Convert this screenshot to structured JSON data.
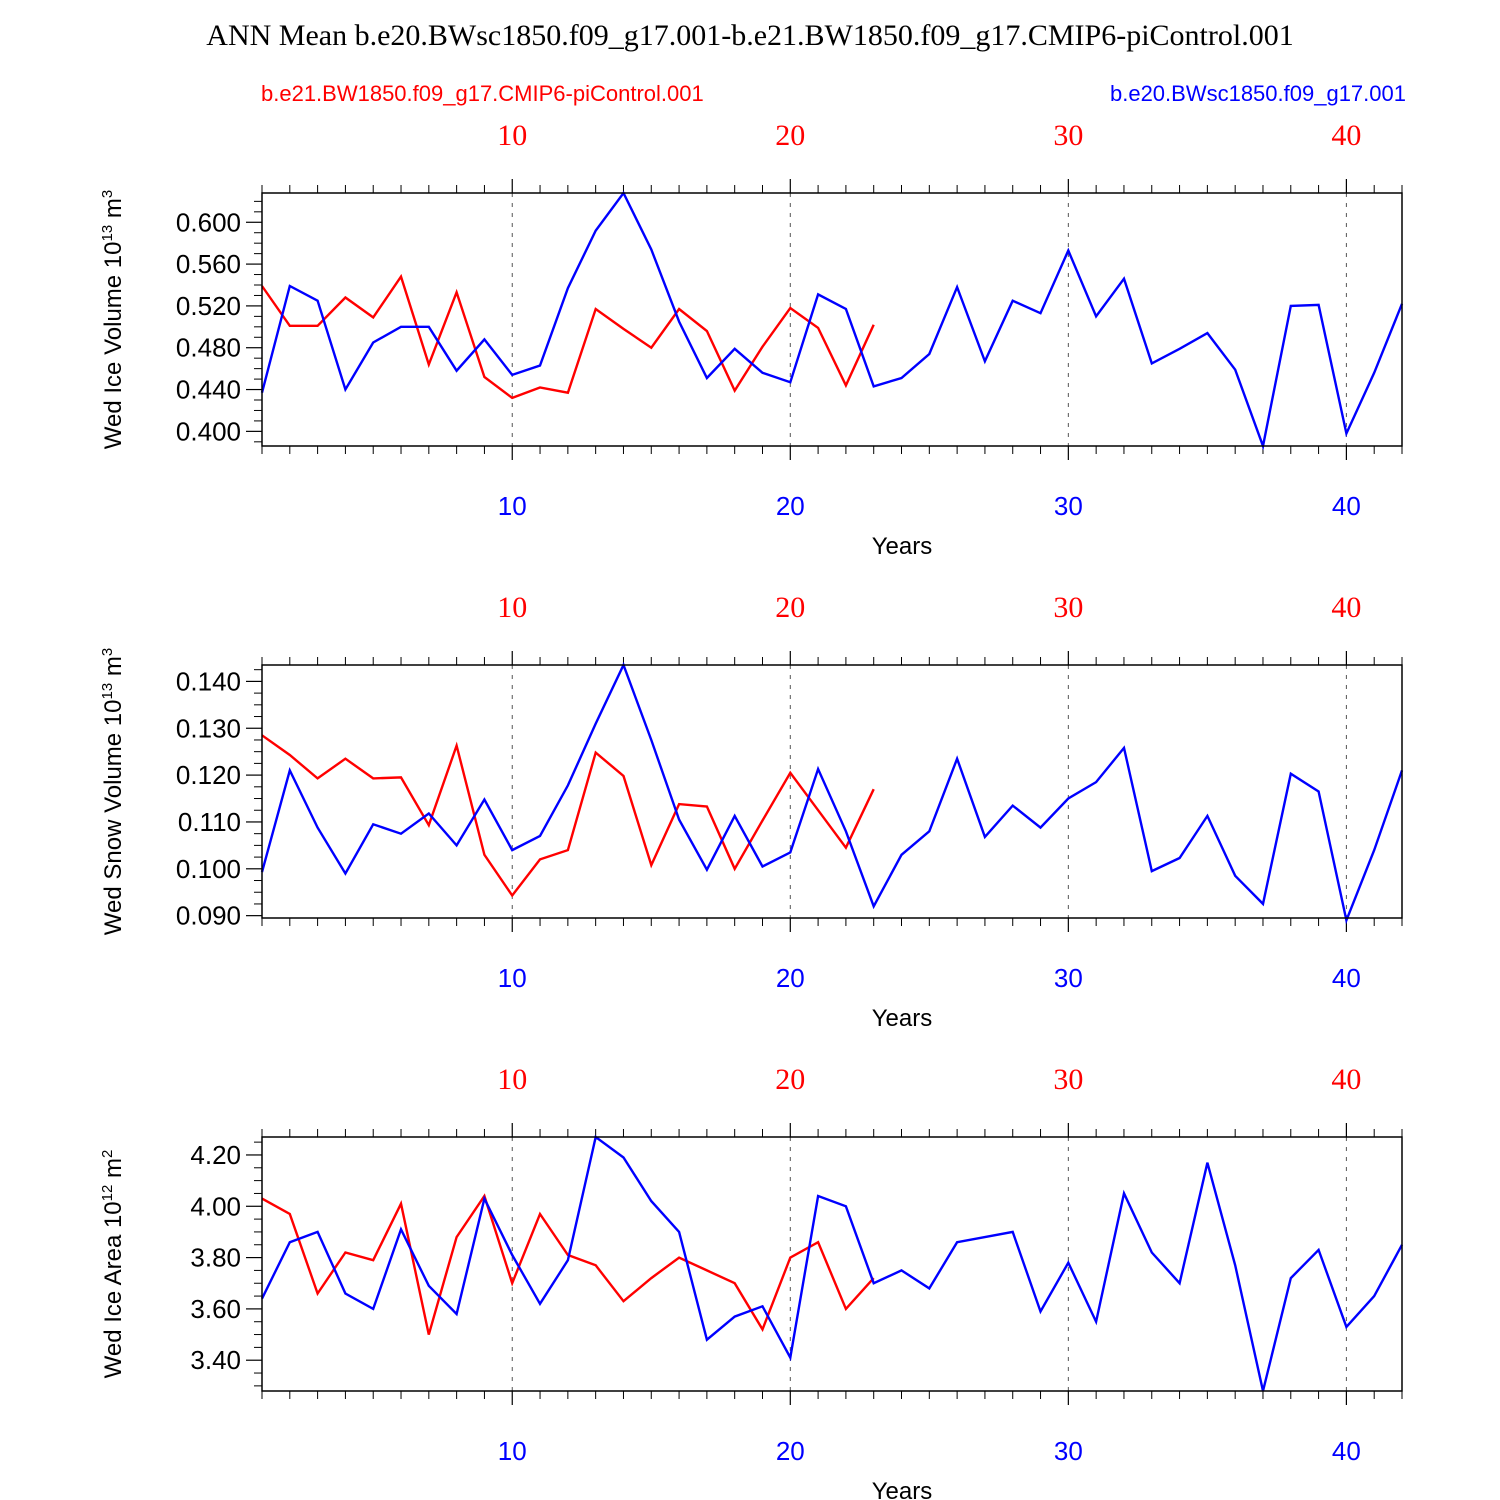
{
  "figure": {
    "title": "ANN Mean b.e20.BWsc1850.f09_g17.001-b.e21.BW1850.f09_g17.CMIP6-piControl.001",
    "legend": {
      "left": {
        "text": "b.e21.BW1850.f09_g17.CMIP6-piControl.001",
        "color": "#ff0000"
      },
      "right": {
        "text": "b.e20.BWsc1850.f09_g17.001",
        "color": "#0000ff"
      }
    },
    "colors": {
      "ctrl": "#ff0000",
      "case": "#0000ff",
      "grid": "#555555",
      "axis": "#000000"
    }
  },
  "chart_data": [
    {
      "type": "line",
      "ylabel": "Wed Ice Volume 10",
      "ylabel_exp": "13",
      "ylabel_unit": " m",
      "ylabel_unit_exp": "3",
      "xlabel": "Years",
      "xlim": [
        1,
        42
      ],
      "ylim": [
        0.386,
        0.628
      ],
      "yticks": [
        "0.400",
        "0.440",
        "0.480",
        "0.520",
        "0.560",
        "0.600"
      ],
      "ytick_values": [
        0.4,
        0.44,
        0.48,
        0.52,
        0.56,
        0.6
      ],
      "yminor": 0.01,
      "xticks": [
        "10",
        "20",
        "30",
        "40"
      ],
      "xtick_values": [
        10,
        20,
        30,
        40
      ],
      "top_xticks": [
        "10",
        "20",
        "30",
        "40"
      ],
      "grid": "dashed vertical at x ticks",
      "series": [
        {
          "name": "b.e21.BW1850.f09_g17.CMIP6-piControl.001",
          "color": "#ff0000",
          "x": [
            1,
            2,
            3,
            4,
            5,
            6,
            7,
            8,
            9,
            10,
            11,
            12,
            13,
            14,
            15,
            16,
            17,
            18,
            19,
            20,
            21,
            22,
            23
          ],
          "values": [
            0.539,
            0.501,
            0.501,
            0.528,
            0.509,
            0.548,
            0.464,
            0.533,
            0.452,
            0.432,
            0.442,
            0.437,
            0.517,
            0.498,
            0.48,
            0.517,
            0.496,
            0.439,
            0.481,
            0.518,
            0.499,
            0.444,
            0.502
          ]
        },
        {
          "name": "b.e20.BWsc1850.f09_g17.001",
          "color": "#0000ff",
          "x": [
            1,
            2,
            3,
            4,
            5,
            6,
            7,
            8,
            9,
            10,
            11,
            12,
            13,
            14,
            15,
            16,
            17,
            18,
            19,
            20,
            21,
            22,
            23,
            24,
            25,
            26,
            27,
            28,
            29,
            30,
            31,
            32,
            33,
            34,
            35,
            36,
            37,
            38,
            39,
            40,
            41,
            42
          ],
          "values": [
            0.437,
            0.539,
            0.525,
            0.44,
            0.485,
            0.5,
            0.5,
            0.458,
            0.488,
            0.454,
            0.463,
            0.537,
            0.592,
            0.628,
            0.574,
            0.505,
            0.451,
            0.479,
            0.456,
            0.447,
            0.531,
            0.517,
            0.443,
            0.451,
            0.474,
            0.538,
            0.467,
            0.525,
            0.513,
            0.573,
            0.51,
            0.546,
            0.465,
            0.479,
            0.494,
            0.459,
            0.386,
            0.52,
            0.521,
            0.398,
            0.456,
            0.522
          ]
        }
      ]
    },
    {
      "type": "line",
      "ylabel": "Wed Snow Volume 10",
      "ylabel_exp": "13",
      "ylabel_unit": " m",
      "ylabel_unit_exp": "3",
      "xlabel": "Years",
      "xlim": [
        1,
        42
      ],
      "ylim": [
        0.0895,
        0.1435
      ],
      "yticks": [
        "0.090",
        "0.100",
        "0.110",
        "0.120",
        "0.130",
        "0.140"
      ],
      "ytick_values": [
        0.09,
        0.1,
        0.11,
        0.12,
        0.13,
        0.14
      ],
      "yminor": 0.0025,
      "xticks": [
        "10",
        "20",
        "30",
        "40"
      ],
      "xtick_values": [
        10,
        20,
        30,
        40
      ],
      "top_xticks": [
        "10",
        "20",
        "30",
        "40"
      ],
      "grid": "dashed vertical at x ticks",
      "series": [
        {
          "name": "b.e21.BW1850.f09_g17.CMIP6-piControl.001",
          "color": "#ff0000",
          "x": [
            1,
            2,
            3,
            4,
            5,
            6,
            7,
            8,
            9,
            10,
            11,
            12,
            13,
            14,
            15,
            16,
            17,
            18,
            19,
            20,
            21,
            22,
            23
          ],
          "values": [
            0.1285,
            0.1243,
            0.1193,
            0.1235,
            0.1193,
            0.1195,
            0.1093,
            0.1263,
            0.103,
            0.0943,
            0.102,
            0.104,
            0.1248,
            0.1198,
            0.1008,
            0.1138,
            0.1133,
            0.1,
            0.1103,
            0.1205,
            0.1125,
            0.1045,
            0.117
          ]
        },
        {
          "name": "b.e20.BWsc1850.f09_g17.001",
          "color": "#0000ff",
          "x": [
            1,
            2,
            3,
            4,
            5,
            6,
            7,
            8,
            9,
            10,
            11,
            12,
            13,
            14,
            15,
            16,
            17,
            18,
            19,
            20,
            21,
            22,
            23,
            24,
            25,
            26,
            27,
            28,
            29,
            30,
            31,
            32,
            33,
            34,
            35,
            36,
            37,
            38,
            39,
            40,
            41,
            42
          ],
          "values": [
            0.0993,
            0.121,
            0.1088,
            0.099,
            0.1095,
            0.1075,
            0.1118,
            0.105,
            0.1148,
            0.104,
            0.107,
            0.1178,
            0.131,
            0.1435,
            0.1275,
            0.1105,
            0.0998,
            0.1113,
            0.1005,
            0.1035,
            0.1213,
            0.108,
            0.092,
            0.103,
            0.108,
            0.1235,
            0.1068,
            0.1135,
            0.1088,
            0.115,
            0.1185,
            0.1258,
            0.0995,
            0.1023,
            0.1113,
            0.0985,
            0.0925,
            0.1203,
            0.1165,
            0.089,
            0.104,
            0.121
          ]
        }
      ]
    },
    {
      "type": "line",
      "ylabel": "Wed Ice Area 10",
      "ylabel_exp": "12",
      "ylabel_unit": " m",
      "ylabel_unit_exp": "2",
      "xlabel": "Years",
      "xlim": [
        1,
        42
      ],
      "ylim": [
        3.28,
        4.27
      ],
      "yticks": [
        "3.40",
        "3.60",
        "3.80",
        "4.00",
        "4.20"
      ],
      "ytick_values": [
        3.4,
        3.6,
        3.8,
        4.0,
        4.2
      ],
      "yminor": 0.05,
      "xticks": [
        "10",
        "20",
        "30",
        "40"
      ],
      "xtick_values": [
        10,
        20,
        30,
        40
      ],
      "top_xticks": [
        "10",
        "20",
        "30",
        "40"
      ],
      "grid": "dashed vertical at x ticks",
      "series": [
        {
          "name": "b.e21.BW1850.f09_g17.CMIP6-piControl.001",
          "color": "#ff0000",
          "x": [
            1,
            2,
            3,
            4,
            5,
            6,
            7,
            8,
            9,
            10,
            11,
            12,
            13,
            14,
            15,
            16,
            17,
            18,
            19,
            20,
            21,
            22,
            23
          ],
          "values": [
            4.03,
            3.97,
            3.66,
            3.82,
            3.79,
            4.01,
            3.5,
            3.88,
            4.04,
            3.7,
            3.97,
            3.81,
            3.77,
            3.63,
            3.72,
            3.8,
            3.75,
            3.7,
            3.52,
            3.8,
            3.86,
            3.6,
            3.72
          ]
        },
        {
          "name": "b.e20.BWsc1850.f09_g17.001",
          "color": "#0000ff",
          "x": [
            1,
            2,
            3,
            4,
            5,
            6,
            7,
            8,
            9,
            10,
            11,
            12,
            13,
            14,
            15,
            16,
            17,
            18,
            19,
            20,
            21,
            22,
            23,
            24,
            25,
            26,
            27,
            28,
            29,
            30,
            31,
            32,
            33,
            34,
            35,
            36,
            37,
            38,
            39,
            40,
            41,
            42
          ],
          "values": [
            3.64,
            3.86,
            3.9,
            3.66,
            3.6,
            3.91,
            3.69,
            3.58,
            4.03,
            3.81,
            3.62,
            3.79,
            4.27,
            4.19,
            4.02,
            3.9,
            3.48,
            3.57,
            3.61,
            3.41,
            4.04,
            4.0,
            3.7,
            3.75,
            3.68,
            3.86,
            3.88,
            3.9,
            3.59,
            3.78,
            3.55,
            4.05,
            3.82,
            3.7,
            4.17,
            3.77,
            3.28,
            3.72,
            3.83,
            3.53,
            3.65,
            3.85
          ]
        }
      ]
    }
  ]
}
